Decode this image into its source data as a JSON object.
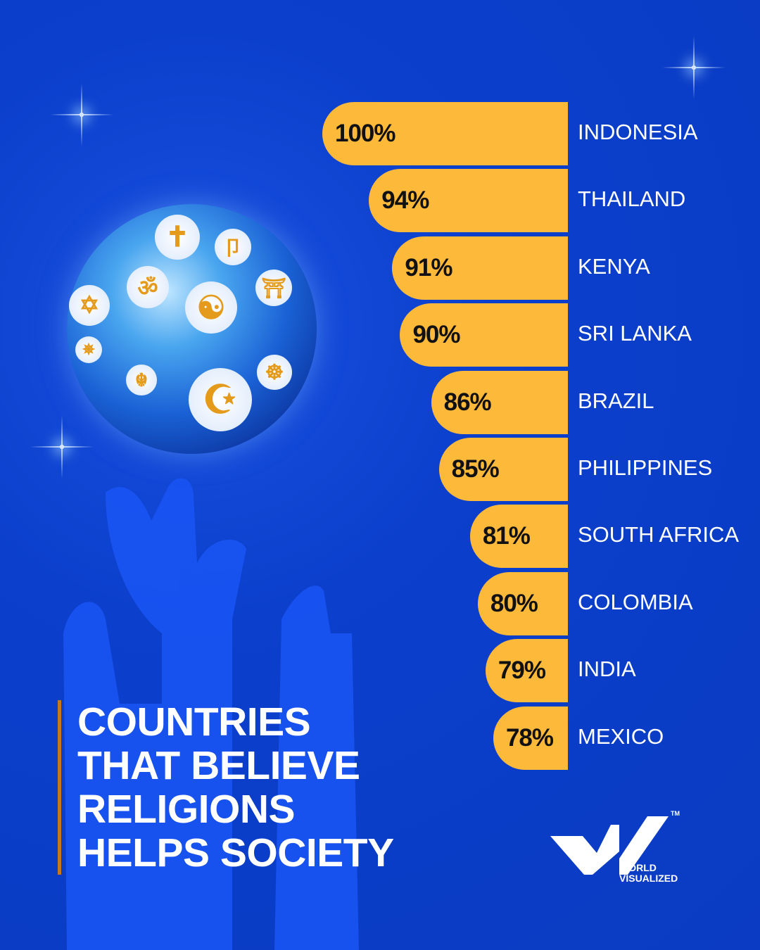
{
  "chart_data": {
    "type": "bar",
    "orientation": "horizontal",
    "title": "COUNTRIES THAT BELIEVE RELIGIONS HELPS SOCIETY",
    "title_lines": [
      "COUNTRIES",
      "THAT BELIEVE",
      "RELIGIONS",
      "HELPS SOCIETY"
    ],
    "categories": [
      "INDONESIA",
      "THAILAND",
      "KENYA",
      "SRI LANKA",
      "BRAZIL",
      "PHILIPPINES",
      "SOUTH AFRICA",
      "COLOMBIA",
      "INDIA",
      "MEXICO"
    ],
    "values": [
      100,
      94,
      91,
      90,
      86,
      85,
      81,
      80,
      79,
      78
    ],
    "value_labels": [
      "100%",
      "94%",
      "91%",
      "90%",
      "86%",
      "85%",
      "81%",
      "80%",
      "79%",
      "78%"
    ],
    "xlim": [
      68.4,
      100
    ],
    "unit": "%",
    "grid": false,
    "bar_color": "#fdb93a"
  },
  "brand": {
    "line1": "WORLD",
    "line2": "VISUALIZED",
    "tm": "TM"
  },
  "symbols": [
    "✝",
    "⼙",
    "ॐ",
    "⛩",
    "✡",
    "☯",
    "✵",
    "☬",
    "☪",
    "☸"
  ]
}
